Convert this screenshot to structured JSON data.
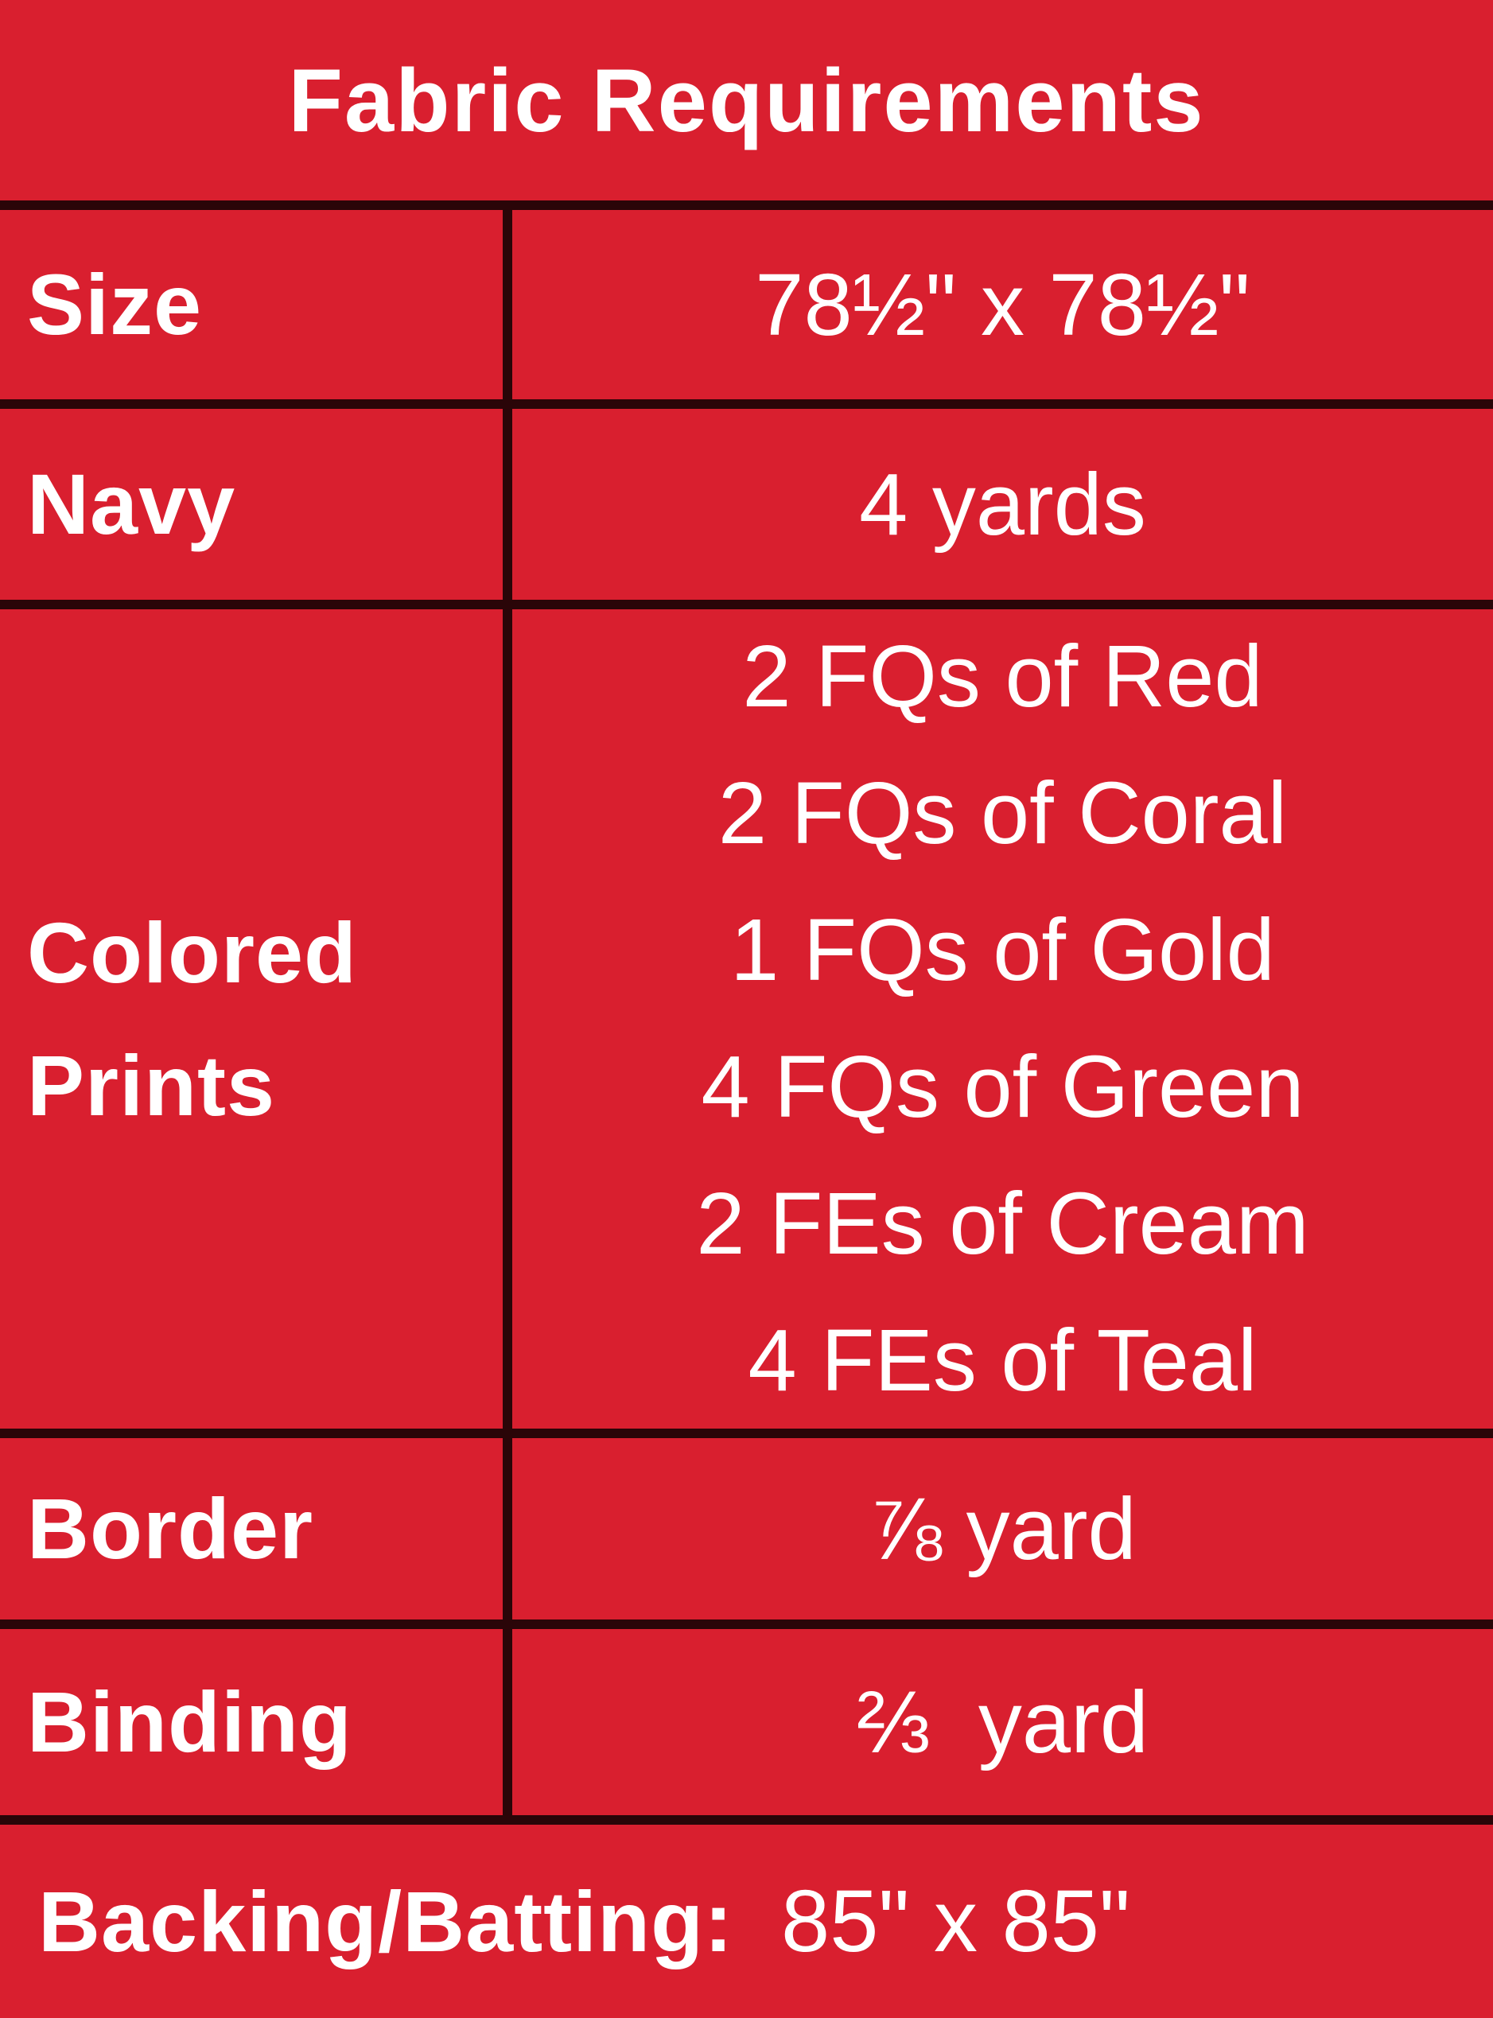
{
  "title": "Fabric Requirements",
  "rows": [
    {
      "label": "Size",
      "value": "78½\" x 78½\""
    },
    {
      "label": "Navy",
      "value": "4 yards"
    },
    {
      "label_lines": [
        "Colored",
        "Prints"
      ],
      "values": [
        "2 FQs of Red",
        "2 FQs of Coral",
        "1 FQs of Gold",
        "4 FQs of Green",
        "2 FEs of Cream",
        "4 FEs of Teal"
      ]
    },
    {
      "label": "Border",
      "value": "⅞ yard"
    },
    {
      "label": "Binding",
      "value": "⅔  yard"
    }
  ],
  "footer": {
    "label": "Backing/Batting:",
    "value": "85\" x 85\""
  },
  "colors": {
    "background": "#d91f2f",
    "rule": "#2a0508",
    "text": "#ffffff"
  }
}
